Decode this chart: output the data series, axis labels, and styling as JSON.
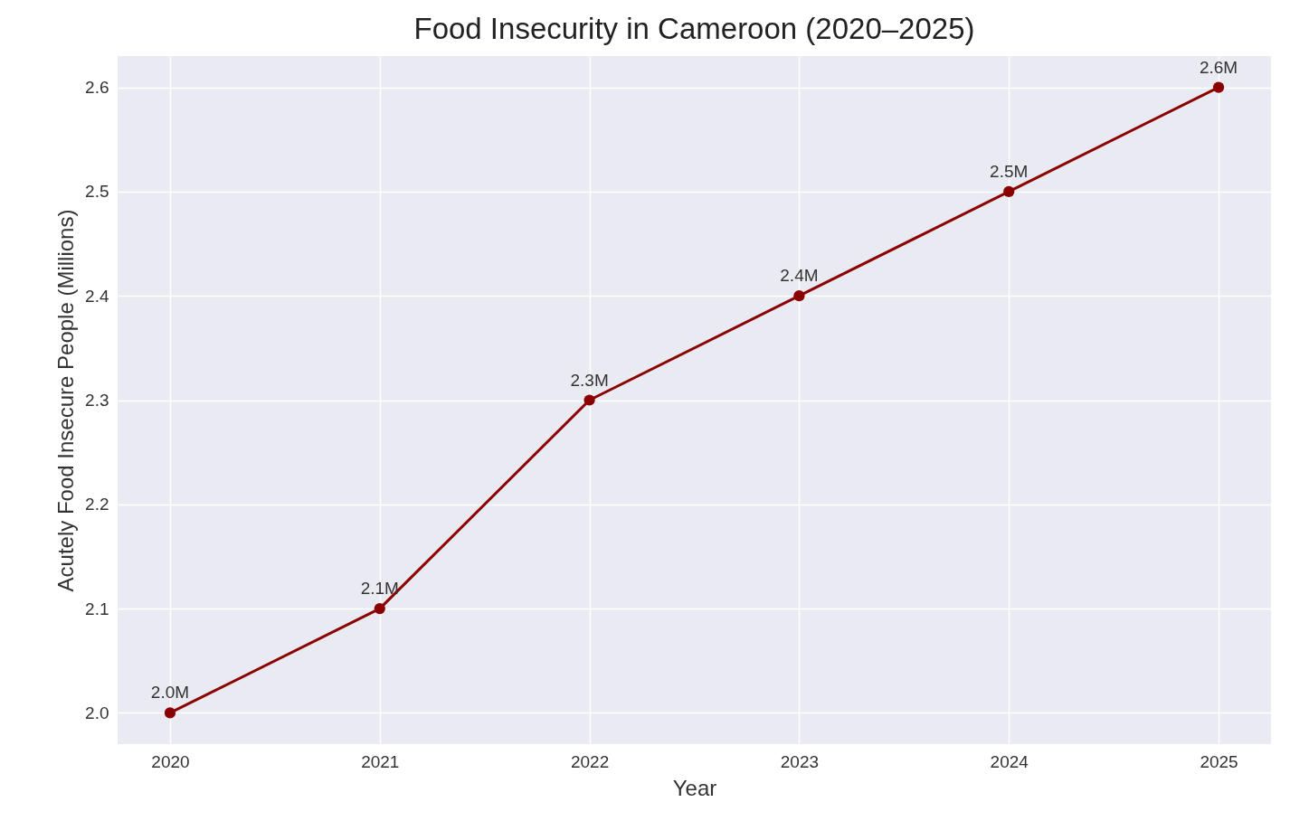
{
  "chart_data": {
    "type": "line",
    "title": "Food Insecurity in Cameroon (2020–2025)",
    "xlabel": "Year",
    "ylabel": "Acutely Food Insecure People (Millions)",
    "x": [
      2020,
      2021,
      2022,
      2023,
      2024,
      2025
    ],
    "series": [
      {
        "color": "#8b0000",
        "values": [
          2.0,
          2.1,
          2.3,
          2.4,
          2.5,
          2.6
        ],
        "value_labels": [
          "2.0M",
          "2.1M",
          "2.3M",
          "2.4M",
          "2.5M",
          "2.6M"
        ]
      }
    ],
    "xlim": [
      2019.75,
      2025.25
    ],
    "xticks": [
      2020,
      2021,
      2022,
      2023,
      2024,
      2025
    ],
    "ylim": [
      1.97,
      2.63
    ],
    "yticks": [
      {
        "value": 2.0,
        "label": "2.0"
      },
      {
        "value": 2.1,
        "label": "2.1"
      },
      {
        "value": 2.2,
        "label": "2.2"
      },
      {
        "value": 2.3,
        "label": "2.3"
      },
      {
        "value": 2.4,
        "label": "2.4"
      },
      {
        "value": 2.5,
        "label": "2.5"
      },
      {
        "value": 2.6,
        "label": "2.6"
      }
    ],
    "grid": true,
    "marker": "circle",
    "line_style": "solid"
  }
}
